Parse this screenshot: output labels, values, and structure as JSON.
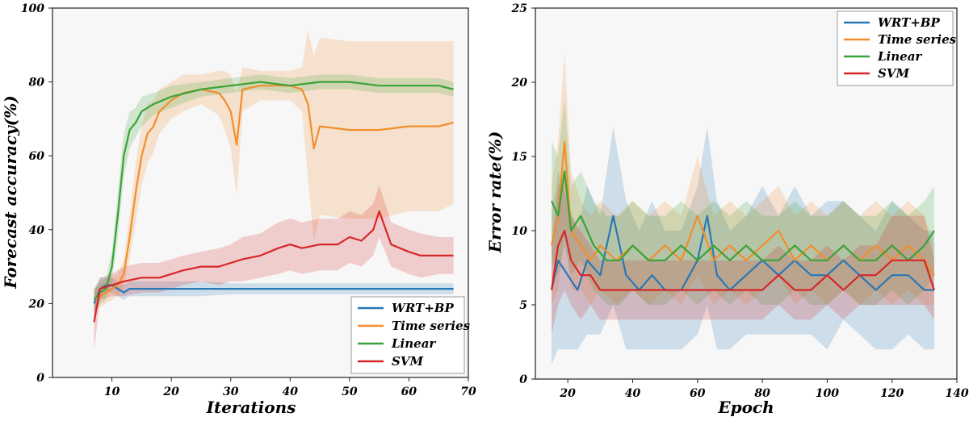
{
  "chart_data": [
    {
      "type": "line",
      "panel": "left",
      "xlabel": "Iterations",
      "ylabel": "Forecast accuracy(%)",
      "xlim": [
        0,
        70
      ],
      "ylim": [
        0,
        100
      ],
      "xticks": [
        "10",
        "20",
        "30",
        "40",
        "50",
        "60",
        "70"
      ],
      "yticks": [
        "0",
        "20",
        "40",
        "60",
        "80",
        "100"
      ],
      "grid": false,
      "legend_position": "bottom-right",
      "series": [
        {
          "name": "WRT+BP",
          "color": "#2878b5",
          "shaded_band": true,
          "x": [
            7,
            8,
            9,
            10,
            11,
            12,
            13,
            15,
            20,
            25,
            30,
            35,
            40,
            45,
            50,
            55,
            60,
            65,
            67.5
          ],
          "y": [
            20,
            24,
            25,
            25,
            24,
            23,
            24,
            24,
            24,
            24,
            24,
            24,
            24,
            24,
            24,
            24,
            24,
            24,
            24
          ],
          "band_half_width": [
            4,
            3,
            2,
            2,
            2,
            2,
            2,
            2,
            2,
            2,
            1.5,
            1.5,
            1.5,
            1.5,
            1.5,
            1.5,
            1.5,
            1.5,
            1.5
          ]
        },
        {
          "name": "Time series",
          "color": "#f28e2b",
          "shaded_band": true,
          "x": [
            7,
            9,
            10,
            11,
            12,
            13,
            14,
            15,
            16,
            17,
            18,
            20,
            22,
            25,
            28,
            29,
            30,
            31,
            32,
            35,
            38,
            40,
            42,
            43,
            44,
            45,
            50,
            55,
            60,
            65,
            67.5
          ],
          "y": [
            21,
            23,
            24,
            25,
            28,
            38,
            50,
            60,
            66,
            68,
            72,
            75,
            77,
            78,
            77,
            75,
            72,
            63,
            78,
            79,
            79,
            79,
            78,
            74,
            62,
            68,
            67,
            67,
            68,
            68,
            69
          ],
          "band_half_width": [
            3,
            3,
            3,
            3,
            4,
            6,
            8,
            8,
            8,
            7,
            6,
            5,
            5,
            4,
            6,
            8,
            10,
            14,
            6,
            4,
            4,
            4,
            6,
            20,
            25,
            24,
            24,
            24,
            23,
            23,
            22
          ]
        },
        {
          "name": "Linear",
          "color": "#3aa339",
          "shaded_band": true,
          "x": [
            7,
            8,
            9,
            10,
            11,
            12,
            13,
            14,
            15,
            17,
            20,
            25,
            30,
            35,
            40,
            45,
            50,
            55,
            60,
            65,
            67.5
          ],
          "y": [
            21,
            23,
            24,
            30,
            44,
            60,
            67,
            69,
            72,
            74,
            76,
            78,
            79,
            80,
            79,
            80,
            80,
            79,
            79,
            79,
            78
          ],
          "band_half_width": [
            3,
            3,
            3,
            4,
            6,
            6,
            5,
            4,
            4,
            3,
            3,
            2,
            2,
            2,
            2,
            2,
            2,
            2,
            2,
            2,
            2
          ]
        },
        {
          "name": "SVM",
          "color": "#d62728",
          "shaded_band": true,
          "x": [
            7,
            8,
            10,
            12,
            15,
            18,
            20,
            22,
            25,
            28,
            30,
            32,
            35,
            38,
            40,
            42,
            45,
            48,
            50,
            52,
            54,
            55,
            57,
            60,
            62,
            65,
            67.5
          ],
          "y": [
            15,
            24,
            25,
            26,
            27,
            27,
            28,
            29,
            30,
            30,
            31,
            32,
            33,
            35,
            36,
            35,
            36,
            36,
            38,
            37,
            40,
            45,
            36,
            34,
            33,
            33,
            33
          ],
          "band_half_width": [
            8,
            3,
            3,
            4,
            4,
            4,
            4,
            4,
            4,
            5,
            5,
            6,
            6,
            7,
            7,
            7,
            7,
            7,
            7,
            7,
            7,
            7,
            6,
            6,
            6,
            5,
            5
          ]
        }
      ]
    },
    {
      "type": "line",
      "panel": "right",
      "xlabel": "Epoch",
      "ylabel": "Error rate(%)",
      "xlim": [
        10,
        140
      ],
      "ylim": [
        0,
        25
      ],
      "xticks": [
        "20",
        "40",
        "60",
        "80",
        "100",
        "120",
        "140"
      ],
      "yticks": [
        "0",
        "5",
        "10",
        "15",
        "20",
        "25"
      ],
      "grid": false,
      "legend_position": "top-right",
      "series": [
        {
          "name": "WRT+BP",
          "color": "#2878b5",
          "shaded_band": true,
          "x": [
            15,
            17,
            20,
            23,
            26,
            30,
            34,
            38,
            42,
            46,
            50,
            55,
            60,
            63,
            66,
            70,
            75,
            80,
            85,
            90,
            95,
            100,
            105,
            110,
            115,
            120,
            125,
            130,
            133
          ],
          "y": [
            6,
            8,
            7,
            6,
            8,
            7,
            11,
            7,
            6,
            7,
            6,
            6,
            8,
            11,
            7,
            6,
            7,
            8,
            7,
            8,
            7,
            7,
            8,
            7,
            6,
            7,
            7,
            6,
            6
          ],
          "band_half_width": [
            5,
            6,
            5,
            4,
            5,
            4,
            6,
            5,
            4,
            5,
            4,
            4,
            5,
            6,
            5,
            4,
            4,
            5,
            4,
            5,
            4,
            5,
            4,
            4,
            4,
            5,
            4,
            4,
            4
          ]
        },
        {
          "name": "Time series",
          "color": "#f28e2b",
          "shaded_band": true,
          "x": [
            15,
            17,
            19,
            21,
            24,
            27,
            30,
            35,
            40,
            45,
            50,
            55,
            60,
            65,
            70,
            75,
            80,
            85,
            90,
            95,
            100,
            105,
            110,
            115,
            120,
            125,
            130,
            133
          ],
          "y": [
            9,
            11,
            16,
            10,
            9,
            8,
            9,
            8,
            9,
            8,
            9,
            8,
            11,
            8,
            9,
            8,
            9,
            10,
            8,
            9,
            8,
            9,
            8,
            9,
            8,
            9,
            8,
            7
          ],
          "band_half_width": [
            4,
            5,
            6,
            4,
            3,
            3,
            3,
            3,
            3,
            3,
            3,
            3,
            4,
            3,
            3,
            3,
            3,
            3,
            3,
            3,
            3,
            3,
            3,
            3,
            3,
            3,
            3,
            2
          ]
        },
        {
          "name": "Linear",
          "color": "#3aa339",
          "shaded_band": true,
          "x": [
            15,
            17,
            19,
            21,
            24,
            28,
            32,
            36,
            40,
            45,
            50,
            55,
            60,
            65,
            70,
            75,
            80,
            85,
            90,
            95,
            100,
            105,
            110,
            115,
            120,
            125,
            130,
            133
          ],
          "y": [
            12,
            11,
            14,
            10,
            11,
            9,
            8,
            8,
            9,
            8,
            8,
            9,
            8,
            9,
            8,
            9,
            8,
            8,
            9,
            8,
            8,
            9,
            8,
            8,
            9,
            8,
            9,
            10
          ],
          "band_half_width": [
            4,
            4,
            5,
            3,
            3,
            3,
            3,
            3,
            3,
            3,
            3,
            3,
            3,
            3,
            3,
            3,
            3,
            3,
            3,
            3,
            3,
            3,
            3,
            3,
            3,
            3,
            3,
            3
          ]
        },
        {
          "name": "SVM",
          "color": "#d62728",
          "shaded_band": true,
          "x": [
            15,
            17,
            19,
            21,
            24,
            27,
            30,
            35,
            40,
            45,
            50,
            55,
            60,
            65,
            70,
            75,
            80,
            85,
            90,
            95,
            100,
            105,
            110,
            115,
            120,
            125,
            130,
            133
          ],
          "y": [
            6,
            9,
            10,
            8,
            7,
            7,
            6,
            6,
            6,
            6,
            6,
            6,
            6,
            6,
            6,
            6,
            6,
            7,
            6,
            6,
            7,
            6,
            7,
            7,
            8,
            8,
            8,
            6
          ],
          "band_half_width": [
            3,
            4,
            4,
            3,
            3,
            2,
            2,
            2,
            2,
            2,
            2,
            2,
            2,
            2,
            2,
            2,
            2,
            2,
            2,
            2,
            2,
            2,
            2,
            2,
            3,
            3,
            3,
            2
          ]
        }
      ]
    }
  ]
}
